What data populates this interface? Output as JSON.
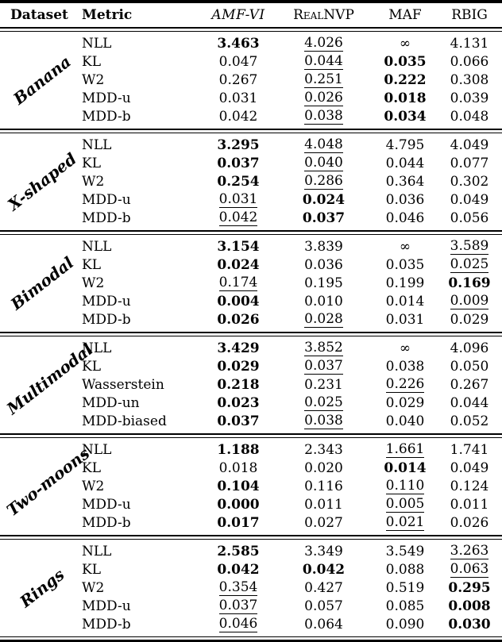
{
  "table": {
    "headers": {
      "dataset": "Dataset",
      "metric": "Metric",
      "amf_vi": "AMF-VI",
      "realnvp": "RealNVP",
      "maf": "MAF",
      "rbig": "RBIG"
    },
    "note_styles": "bold = best result, underline = second best",
    "groups": [
      {
        "dataset": "Banana",
        "rows": [
          {
            "metric": "NLL",
            "values": [
              {
                "text": "3.463",
                "style": "bold"
              },
              {
                "text": "4.026",
                "style": "underline"
              },
              {
                "text": "∞",
                "style": "plain"
              },
              {
                "text": "4.131",
                "style": "plain"
              }
            ]
          },
          {
            "metric": "KL",
            "values": [
              {
                "text": "0.047",
                "style": "plain"
              },
              {
                "text": "0.044",
                "style": "underline"
              },
              {
                "text": "0.035",
                "style": "bold"
              },
              {
                "text": "0.066",
                "style": "plain"
              }
            ]
          },
          {
            "metric": "W2",
            "values": [
              {
                "text": "0.267",
                "style": "plain"
              },
              {
                "text": "0.251",
                "style": "underline"
              },
              {
                "text": "0.222",
                "style": "bold"
              },
              {
                "text": "0.308",
                "style": "plain"
              }
            ]
          },
          {
            "metric": "MDD-u",
            "values": [
              {
                "text": "0.031",
                "style": "plain"
              },
              {
                "text": "0.026",
                "style": "underline"
              },
              {
                "text": "0.018",
                "style": "bold"
              },
              {
                "text": "0.039",
                "style": "plain"
              }
            ]
          },
          {
            "metric": "MDD-b",
            "values": [
              {
                "text": "0.042",
                "style": "plain"
              },
              {
                "text": "0.038",
                "style": "underline"
              },
              {
                "text": "0.034",
                "style": "bold"
              },
              {
                "text": "0.048",
                "style": "plain"
              }
            ]
          }
        ]
      },
      {
        "dataset": "X-shaped",
        "rows": [
          {
            "metric": "NLL",
            "values": [
              {
                "text": "3.295",
                "style": "bold"
              },
              {
                "text": "4.048",
                "style": "underline"
              },
              {
                "text": "4.795",
                "style": "plain"
              },
              {
                "text": "4.049",
                "style": "plain"
              }
            ]
          },
          {
            "metric": "KL",
            "values": [
              {
                "text": "0.037",
                "style": "bold"
              },
              {
                "text": "0.040",
                "style": "underline"
              },
              {
                "text": "0.044",
                "style": "plain"
              },
              {
                "text": "0.077",
                "style": "plain"
              }
            ]
          },
          {
            "metric": "W2",
            "values": [
              {
                "text": "0.254",
                "style": "bold"
              },
              {
                "text": "0.286",
                "style": "underline"
              },
              {
                "text": "0.364",
                "style": "plain"
              },
              {
                "text": "0.302",
                "style": "plain"
              }
            ]
          },
          {
            "metric": "MDD-u",
            "values": [
              {
                "text": "0.031",
                "style": "underline"
              },
              {
                "text": "0.024",
                "style": "bold"
              },
              {
                "text": "0.036",
                "style": "plain"
              },
              {
                "text": "0.049",
                "style": "plain"
              }
            ]
          },
          {
            "metric": "MDD-b",
            "values": [
              {
                "text": "0.042",
                "style": "underline"
              },
              {
                "text": "0.037",
                "style": "bold"
              },
              {
                "text": "0.046",
                "style": "plain"
              },
              {
                "text": "0.056",
                "style": "plain"
              }
            ]
          }
        ]
      },
      {
        "dataset": "Bimodal",
        "rows": [
          {
            "metric": "NLL",
            "values": [
              {
                "text": "3.154",
                "style": "bold"
              },
              {
                "text": "3.839",
                "style": "plain"
              },
              {
                "text": "∞",
                "style": "plain"
              },
              {
                "text": "3.589",
                "style": "underline"
              }
            ]
          },
          {
            "metric": "KL",
            "values": [
              {
                "text": "0.024",
                "style": "bold"
              },
              {
                "text": "0.036",
                "style": "plain"
              },
              {
                "text": "0.035",
                "style": "plain"
              },
              {
                "text": "0.025",
                "style": "underline"
              }
            ]
          },
          {
            "metric": "W2",
            "values": [
              {
                "text": "0.174",
                "style": "underline"
              },
              {
                "text": "0.195",
                "style": "plain"
              },
              {
                "text": "0.199",
                "style": "plain"
              },
              {
                "text": "0.169",
                "style": "bold"
              }
            ]
          },
          {
            "metric": "MDD-u",
            "values": [
              {
                "text": "0.004",
                "style": "bold"
              },
              {
                "text": "0.010",
                "style": "plain"
              },
              {
                "text": "0.014",
                "style": "plain"
              },
              {
                "text": "0.009",
                "style": "underline"
              }
            ]
          },
          {
            "metric": "MDD-b",
            "values": [
              {
                "text": "0.026",
                "style": "bold"
              },
              {
                "text": "0.028",
                "style": "underline"
              },
              {
                "text": "0.031",
                "style": "plain"
              },
              {
                "text": "0.029",
                "style": "plain"
              }
            ]
          }
        ]
      },
      {
        "dataset": "Multimodal",
        "rows": [
          {
            "metric": "NLL",
            "values": [
              {
                "text": "3.429",
                "style": "bold"
              },
              {
                "text": "3.852",
                "style": "underline"
              },
              {
                "text": "∞",
                "style": "plain"
              },
              {
                "text": "4.096",
                "style": "plain"
              }
            ]
          },
          {
            "metric": "KL",
            "values": [
              {
                "text": "0.029",
                "style": "bold"
              },
              {
                "text": "0.037",
                "style": "underline"
              },
              {
                "text": "0.038",
                "style": "plain"
              },
              {
                "text": "0.050",
                "style": "plain"
              }
            ]
          },
          {
            "metric": "Wasserstein",
            "values": [
              {
                "text": "0.218",
                "style": "bold"
              },
              {
                "text": "0.231",
                "style": "plain"
              },
              {
                "text": "0.226",
                "style": "underline"
              },
              {
                "text": "0.267",
                "style": "plain"
              }
            ]
          },
          {
            "metric": "MDD-un",
            "values": [
              {
                "text": "0.023",
                "style": "bold"
              },
              {
                "text": "0.025",
                "style": "underline"
              },
              {
                "text": "0.029",
                "style": "plain"
              },
              {
                "text": "0.044",
                "style": "plain"
              }
            ]
          },
          {
            "metric": "MDD-biased",
            "values": [
              {
                "text": "0.037",
                "style": "bold"
              },
              {
                "text": "0.038",
                "style": "underline"
              },
              {
                "text": "0.040",
                "style": "plain"
              },
              {
                "text": "0.052",
                "style": "plain"
              }
            ]
          }
        ]
      },
      {
        "dataset": "Two-moons",
        "rows": [
          {
            "metric": "NLL",
            "values": [
              {
                "text": "1.188",
                "style": "bold"
              },
              {
                "text": "2.343",
                "style": "plain"
              },
              {
                "text": "1.661",
                "style": "underline"
              },
              {
                "text": "1.741",
                "style": "plain"
              }
            ]
          },
          {
            "metric": "KL",
            "values": [
              {
                "text": "0.018",
                "style": "plain"
              },
              {
                "text": "0.020",
                "style": "plain"
              },
              {
                "text": "0.014",
                "style": "bold"
              },
              {
                "text": "0.049",
                "style": "plain"
              }
            ]
          },
          {
            "metric": "W2",
            "values": [
              {
                "text": "0.104",
                "style": "bold"
              },
              {
                "text": "0.116",
                "style": "plain"
              },
              {
                "text": "0.110",
                "style": "underline"
              },
              {
                "text": "0.124",
                "style": "plain"
              }
            ]
          },
          {
            "metric": "MDD-u",
            "values": [
              {
                "text": "0.000",
                "style": "bold"
              },
              {
                "text": "0.011",
                "style": "plain"
              },
              {
                "text": "0.005",
                "style": "underline"
              },
              {
                "text": "0.011",
                "style": "plain"
              }
            ]
          },
          {
            "metric": "MDD-b",
            "values": [
              {
                "text": "0.017",
                "style": "bold"
              },
              {
                "text": "0.027",
                "style": "plain"
              },
              {
                "text": "0.021",
                "style": "underline"
              },
              {
                "text": "0.026",
                "style": "plain"
              }
            ]
          }
        ]
      },
      {
        "dataset": "Rings",
        "rows": [
          {
            "metric": "NLL",
            "values": [
              {
                "text": "2.585",
                "style": "bold"
              },
              {
                "text": "3.349",
                "style": "plain"
              },
              {
                "text": "3.549",
                "style": "plain"
              },
              {
                "text": "3.263",
                "style": "underline"
              }
            ]
          },
          {
            "metric": "KL",
            "values": [
              {
                "text": "0.042",
                "style": "bold"
              },
              {
                "text": "0.042",
                "style": "bold"
              },
              {
                "text": "0.088",
                "style": "plain"
              },
              {
                "text": "0.063",
                "style": "underline"
              }
            ]
          },
          {
            "metric": "W2",
            "values": [
              {
                "text": "0.354",
                "style": "underline"
              },
              {
                "text": "0.427",
                "style": "plain"
              },
              {
                "text": "0.519",
                "style": "plain"
              },
              {
                "text": "0.295",
                "style": "bold"
              }
            ]
          },
          {
            "metric": "MDD-u",
            "values": [
              {
                "text": "0.037",
                "style": "underline"
              },
              {
                "text": "0.057",
                "style": "plain"
              },
              {
                "text": "0.085",
                "style": "plain"
              },
              {
                "text": "0.008",
                "style": "bold"
              }
            ]
          },
          {
            "metric": "MDD-b",
            "values": [
              {
                "text": "0.046",
                "style": "underline"
              },
              {
                "text": "0.064",
                "style": "plain"
              },
              {
                "text": "0.090",
                "style": "plain"
              },
              {
                "text": "0.030",
                "style": "bold"
              }
            ]
          }
        ]
      }
    ]
  }
}
